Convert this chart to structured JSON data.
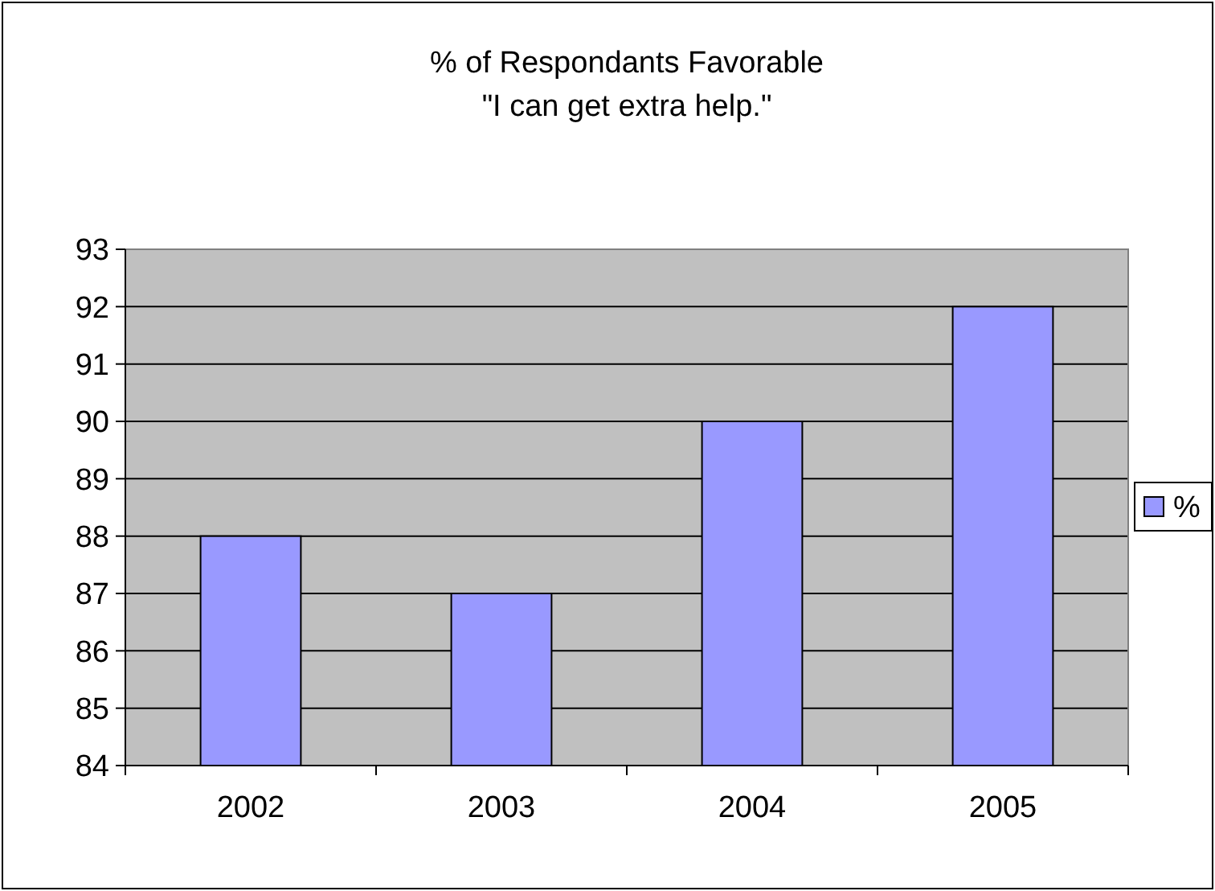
{
  "chart_data": {
    "type": "bar",
    "title": "% of Respondants Favorable",
    "subtitle": "\"I can get extra help.\"",
    "categories": [
      "2002",
      "2003",
      "2004",
      "2005"
    ],
    "series": [
      {
        "name": "%",
        "color": "#9999ff",
        "values": [
          88,
          87,
          90,
          92
        ]
      }
    ],
    "ylim": [
      84,
      93
    ],
    "yticks": [
      84,
      85,
      86,
      87,
      88,
      89,
      90,
      91,
      92,
      93
    ],
    "grid": "y",
    "legend": "right"
  }
}
